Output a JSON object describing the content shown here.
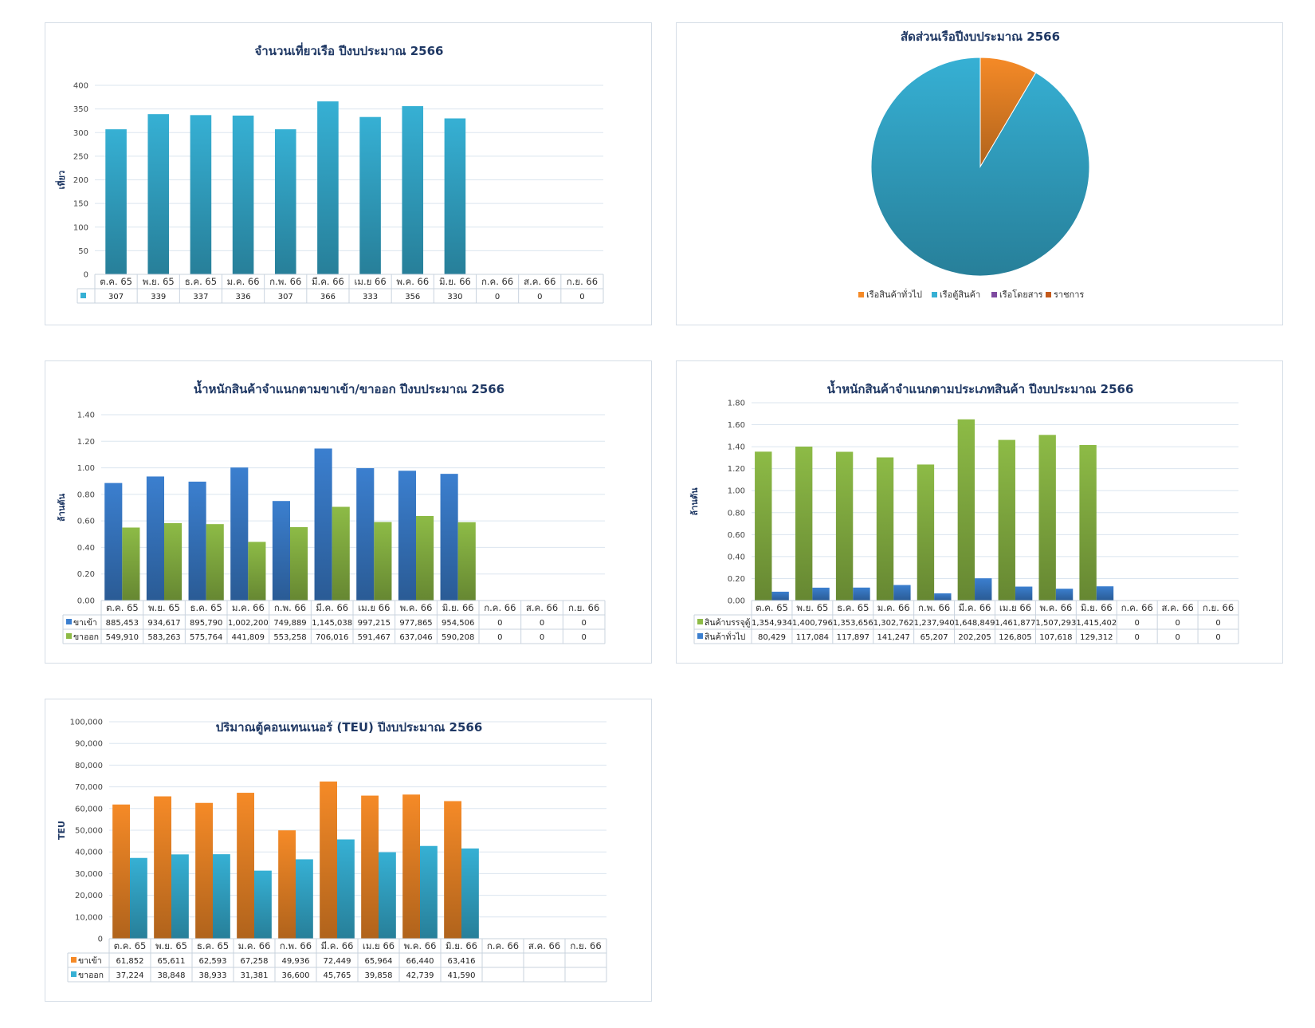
{
  "categories": [
    "ต.ค. 65",
    "พ.ย. 65",
    "ธ.ค. 65",
    "ม.ค. 66",
    "ก.พ. 66",
    "มี.ค. 66",
    "เม.ย 66",
    "พ.ค. 66",
    "มิ.ย. 66",
    "ก.ค. 66",
    "ส.ค. 66",
    "ก.ย. 66"
  ],
  "colors": {
    "blue": "#3b7fcf",
    "green": "#8dbb46",
    "cyan": "#36b0d4",
    "orange": "#f58a27",
    "purple": "#7e4aa0",
    "darkorange": "#c45a1b",
    "grid": "#dbe5ef"
  },
  "chart_data": [
    {
      "type": "bar",
      "title": "จำนวนเที่ยวเรือ ปีงบประมาณ 2566",
      "ylabel": "เที่ยว",
      "ylim": [
        0,
        400
      ],
      "yticks": [
        "0",
        "50",
        "100",
        "150",
        "200",
        "250",
        "300",
        "350",
        "400"
      ],
      "series": [
        {
          "values": [
            307,
            339,
            337,
            336,
            307,
            366,
            333,
            356,
            330,
            0,
            0,
            0
          ],
          "labels": [
            "307",
            "339",
            "337",
            "336",
            "307",
            "366",
            "333",
            "356",
            "330",
            "0",
            "0",
            "0"
          ],
          "color": "#36b0d4"
        }
      ]
    },
    {
      "type": "pie",
      "title": "สัดส่วนเรือปีงบประมาณ 2566",
      "legend_position": "bottom",
      "slices": [
        {
          "name": "เรือสินค้าทั่วไป",
          "value": 8.5,
          "color": "#f58a27"
        },
        {
          "name": "เรือตู้สินค้า",
          "value": 91.5,
          "color": "#36b0d4"
        },
        {
          "name": "เรือโดยสาร",
          "value": 0,
          "color": "#7e4aa0"
        },
        {
          "name": "ราชการ",
          "value": 0,
          "color": "#c45a1b"
        }
      ]
    },
    {
      "type": "bar",
      "title": "น้ำหนักสินค้าจำแนกตามขาเข้า/ขาออก ปีงบประมาณ 2566",
      "ylabel": "ล้านตัน",
      "ylim": [
        0,
        1.4
      ],
      "yticks": [
        "0.00",
        "0.20",
        "0.40",
        "0.60",
        "0.80",
        "1.00",
        "1.20",
        "1.40"
      ],
      "series": [
        {
          "name": "ขาเข้า",
          "values": [
            0.885453,
            0.934617,
            0.89579,
            1.0022,
            0.749889,
            1.145038,
            0.997215,
            0.977865,
            0.954506,
            0,
            0,
            0
          ],
          "labels": [
            "885,453",
            "934,617",
            "895,790",
            "1,002,200",
            "749,889",
            "1,145,038",
            "997,215",
            "977,865",
            "954,506",
            "0",
            "0",
            "0"
          ],
          "color": "#3b7fcf"
        },
        {
          "name": "ขาออก",
          "values": [
            0.54991,
            0.583263,
            0.575764,
            0.441809,
            0.553258,
            0.706016,
            0.591467,
            0.637046,
            0.590208,
            0,
            0,
            0
          ],
          "labels": [
            "549,910",
            "583,263",
            "575,764",
            "441,809",
            "553,258",
            "706,016",
            "591,467",
            "637,046",
            "590,208",
            "0",
            "0",
            "0"
          ],
          "color": "#8dbb46"
        }
      ]
    },
    {
      "type": "bar",
      "title": "น้ำหนักสินค้าจำแนกตามประเภทสินค้า ปีงบประมาณ 2566",
      "ylabel": "ล้านตัน",
      "ylim": [
        0,
        1.8
      ],
      "yticks": [
        "0.00",
        "0.20",
        "0.40",
        "0.60",
        "0.80",
        "1.00",
        "1.20",
        "1.40",
        "1.60",
        "1.80"
      ],
      "series": [
        {
          "name": "สินค้าบรรจุตู้",
          "values": [
            1.354934,
            1.400796,
            1.353656,
            1.302762,
            1.23794,
            1.648849,
            1.461877,
            1.507293,
            1.415402,
            0,
            0,
            0
          ],
          "labels": [
            "1,354,934",
            "1,400,796",
            "1,353,656",
            "1,302,762",
            "1,237,940",
            "1,648,849",
            "1,461,877",
            "1,507,293",
            "1,415,402",
            "0",
            "0",
            "0"
          ],
          "color": "#8dbb46"
        },
        {
          "name": "สินค้าทั่วไป",
          "values": [
            0.080429,
            0.117084,
            0.117897,
            0.141247,
            0.065207,
            0.202205,
            0.126805,
            0.107618,
            0.129312,
            0,
            0,
            0
          ],
          "labels": [
            "80,429",
            "117,084",
            "117,897",
            "141,247",
            "65,207",
            "202,205",
            "126,805",
            "107,618",
            "129,312",
            "0",
            "0",
            "0"
          ],
          "color": "#3b7fcf"
        }
      ]
    },
    {
      "type": "bar",
      "title": "ปริมาณตู้คอนเทนเนอร์ (TEU) ปีงบประมาณ 2566",
      "ylabel": "TEU",
      "ylim": [
        0,
        100000
      ],
      "yticks": [
        "0",
        "10,000",
        "20,000",
        "30,000",
        "40,000",
        "50,000",
        "60,000",
        "70,000",
        "80,000",
        "90,000",
        "100,000"
      ],
      "series": [
        {
          "name": "ขาเข้า",
          "values": [
            61852,
            65611,
            62593,
            67258,
            49936,
            72449,
            65964,
            66440,
            63416,
            null,
            null,
            null
          ],
          "labels": [
            "61,852",
            "65,611",
            "62,593",
            "67,258",
            "49,936",
            "72,449",
            "65,964",
            "66,440",
            "63,416",
            "",
            "",
            ""
          ],
          "color": "#f58a27"
        },
        {
          "name": "ขาออก",
          "values": [
            37224,
            38848,
            38933,
            31381,
            36600,
            45765,
            39858,
            42739,
            41590,
            null,
            null,
            null
          ],
          "labels": [
            "37,224",
            "38,848",
            "38,933",
            "31,381",
            "36,600",
            "45,765",
            "39,858",
            "42,739",
            "41,590",
            "",
            "",
            ""
          ],
          "color": "#36b0d4"
        }
      ]
    }
  ]
}
